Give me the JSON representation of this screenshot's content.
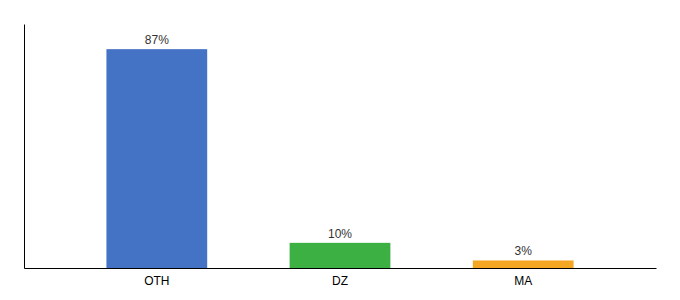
{
  "chart_data": {
    "type": "bar",
    "categories": [
      "OTH",
      "DZ",
      "MA"
    ],
    "values": [
      87,
      10,
      3
    ],
    "value_labels": [
      "87%",
      "10%",
      "3%"
    ],
    "colors": [
      "#4472c4",
      "#3cb043",
      "#f5a623"
    ],
    "ylim": [
      0,
      97
    ],
    "data_labels": true,
    "tick_labels": "x"
  }
}
